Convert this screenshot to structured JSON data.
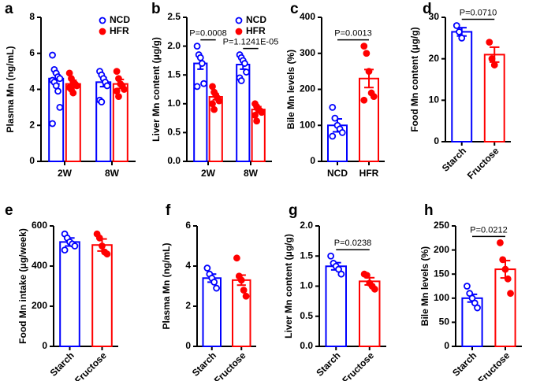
{
  "chart_data": [
    {
      "panel": "a",
      "type": "bar",
      "ylabel": "Plasma Mn (ng/mL)",
      "ylim": [
        0,
        8
      ],
      "yticks": [
        0,
        2,
        4,
        6,
        8
      ],
      "categories": [
        "2W",
        "8W"
      ],
      "legend": "upper right",
      "series": [
        {
          "name": "NCD",
          "color": "#0000ff",
          "values": [
            4.6,
            4.4
          ],
          "errors": [
            0.3,
            0.25
          ],
          "points": [
            [
              5.9,
              5.1,
              4.9,
              4.7,
              4.6,
              4.5,
              4.4,
              4.2,
              3.9,
              3.0,
              2.1
            ],
            [
              5.0,
              4.8,
              4.6,
              4.4,
              4.2,
              3.4,
              3.3
            ]
          ]
        },
        {
          "name": "HFR",
          "color": "#ff0000",
          "values": [
            4.3,
            4.3
          ],
          "errors": [
            0.2,
            0.25
          ],
          "points": [
            [
              4.9,
              4.6,
              4.4,
              4.3,
              4.2,
              4.1,
              4.0,
              3.8
            ],
            [
              5.0,
              4.6,
              4.3,
              4.2,
              4.0,
              3.9,
              3.6
            ]
          ]
        }
      ]
    },
    {
      "panel": "b",
      "type": "bar",
      "ylabel": "Liver Mn content (μg/g)",
      "ylim": [
        0,
        2.5
      ],
      "yticks": [
        {
          "value": 0,
          "label": "0.0"
        },
        0.5,
        {
          "value": 1,
          "label": "1.0"
        },
        1.5,
        {
          "value": 2,
          "label": "2.0"
        },
        2.5
      ],
      "categories": [
        "2W",
        "8W"
      ],
      "legend": "upper right",
      "annotations": [
        "P=0.0008",
        "P=1.1241E-05"
      ],
      "series": [
        {
          "name": "NCD",
          "color": "#0000ff",
          "values": [
            1.7,
            1.68
          ],
          "errors": [
            0.1,
            0.08
          ],
          "points": [
            [
              2.0,
              1.85,
              1.8,
              1.7,
              1.35,
              1.3
            ],
            [
              1.85,
              1.8,
              1.75,
              1.7,
              1.55,
              1.45,
              1.4
            ]
          ]
        },
        {
          "name": "HFR",
          "color": "#ff0000",
          "values": [
            1.12,
            0.9
          ],
          "errors": [
            0.05,
            0.05
          ],
          "points": [
            [
              1.3,
              1.2,
              1.15,
              1.1,
              1.05,
              1.0,
              0.9
            ],
            [
              1.0,
              0.95,
              0.9,
              0.88,
              0.85,
              0.8,
              0.7
            ]
          ]
        }
      ]
    },
    {
      "panel": "c",
      "type": "bar",
      "ylabel": "Bile Mn levels (%)",
      "ylim": [
        0,
        400
      ],
      "yticks": [
        0,
        100,
        200,
        300,
        400
      ],
      "categories": [
        "NCD",
        "HFR"
      ],
      "colors": [
        "#0000ff",
        "#ff0000"
      ],
      "values": [
        100,
        230
      ],
      "errors": [
        18,
        25
      ],
      "points": [
        [
          150,
          120,
          100,
          90,
          80,
          70
        ],
        [
          320,
          300,
          250,
          190,
          180,
          170
        ]
      ],
      "annotations": [
        "P=0.0013"
      ]
    },
    {
      "panel": "d",
      "type": "bar",
      "ylabel": "Food Mn content (μg/g)",
      "ylim": [
        0,
        30
      ],
      "yticks": [
        0,
        10,
        20,
        30
      ],
      "categories": [
        "Starch",
        "Fructose"
      ],
      "colors": [
        "#0000ff",
        "#ff0000"
      ],
      "values": [
        26.5,
        21
      ],
      "errors": [
        1,
        1.8
      ],
      "points": [
        [
          28,
          26.5,
          25
        ],
        [
          24,
          20,
          18.5
        ]
      ],
      "annotations": [
        "P=0.0710"
      ]
    },
    {
      "panel": "e",
      "type": "bar",
      "ylabel": "Food Mn intake (μg/week)",
      "ylim": [
        0,
        600
      ],
      "yticks": [
        0,
        200,
        400,
        600
      ],
      "categories": [
        "Starch",
        "Fructose"
      ],
      "colors": [
        "#0000ff",
        "#ff0000"
      ],
      "values": [
        520,
        505
      ],
      "errors": [
        20,
        30
      ],
      "points": [
        [
          560,
          540,
          520,
          510,
          500,
          480
        ],
        [
          560,
          540,
          500,
          470,
          460
        ]
      ]
    },
    {
      "panel": "f",
      "type": "bar",
      "ylabel": "Plasma Mn (ng/mL)",
      "ylim": [
        0,
        6
      ],
      "yticks": [
        0,
        2,
        4,
        6
      ],
      "categories": [
        "Starch",
        "Fructose"
      ],
      "colors": [
        "#0000ff",
        "#ff0000"
      ],
      "values": [
        3.4,
        3.3
      ],
      "errors": [
        0.2,
        0.25
      ],
      "points": [
        [
          3.9,
          3.6,
          3.4,
          3.2,
          2.9
        ],
        [
          4.4,
          3.5,
          3.3,
          2.8,
          2.5
        ]
      ]
    },
    {
      "panel": "g",
      "type": "bar",
      "ylabel": "Liver Mn content (μg/g)",
      "ylim": [
        0,
        2
      ],
      "yticks": [
        {
          "value": 0,
          "label": "0.0"
        },
        0.5,
        {
          "value": 1,
          "label": "1.0"
        },
        1.5,
        {
          "value": 2,
          "label": "2.0"
        }
      ],
      "categories": [
        "Starch",
        "Fructose"
      ],
      "colors": [
        "#0000ff",
        "#ff0000"
      ],
      "values": [
        1.33,
        1.08
      ],
      "errors": [
        0.06,
        0.06
      ],
      "points": [
        [
          1.5,
          1.38,
          1.33,
          1.28,
          1.2
        ],
        [
          1.2,
          1.18,
          1.05,
          1.0,
          0.95
        ]
      ],
      "annotations": [
        "P=0.0238"
      ]
    },
    {
      "panel": "h",
      "type": "bar",
      "ylabel": "Bile Mn levels (%)",
      "ylim": [
        0,
        250
      ],
      "yticks": [
        0,
        50,
        100,
        150,
        200,
        250
      ],
      "categories": [
        "Starch",
        "Fructose"
      ],
      "colors": [
        "#0000ff",
        "#ff0000"
      ],
      "values": [
        100,
        160
      ],
      "errors": [
        8,
        18
      ],
      "points": [
        [
          125,
          110,
          100,
          90,
          80
        ],
        [
          215,
          180,
          160,
          140,
          110
        ]
      ],
      "annotations": [
        "P=0.0212"
      ]
    }
  ]
}
